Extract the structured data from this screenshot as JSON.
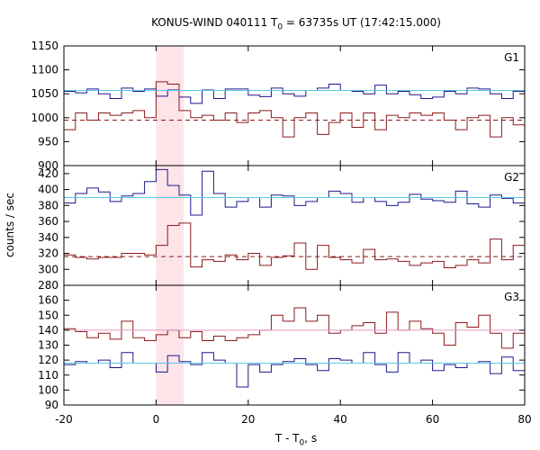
{
  "title_main": "KONUS-WIND 040111 T",
  "title_sub": "0",
  "title_rest": " = 63735s UT (17:42:15.000)",
  "xlabel_main": "T - T",
  "xlabel_sub": "0",
  "xlabel_rest": ", s",
  "ylabel": "counts / sec",
  "colors": {
    "blue": "#1a1a8c",
    "red": "#8b1a1a",
    "cyan": "#5bc8e8",
    "pink": "#e89ac8",
    "shade": "#fde4e8"
  },
  "chart_data": [
    {
      "type": "line",
      "panel": "G1",
      "xlim": [
        -20,
        80
      ],
      "ylim": [
        900,
        1150
      ],
      "yticks": [
        900,
        950,
        1000,
        1050,
        1100,
        1150
      ],
      "xticks": [
        -20,
        0,
        20,
        40,
        60,
        80
      ],
      "highlight_interval": [
        0,
        6
      ],
      "series": [
        {
          "color": "blue",
          "step": 2.5,
          "x0": -20,
          "values": [
            1055,
            1052,
            1060,
            1050,
            1040,
            1062,
            1055,
            1060,
            1045,
            1058,
            1043,
            1030,
            1058,
            1040,
            1060,
            1060,
            1047,
            1044,
            1062,
            1050,
            1045,
            1057,
            1062,
            1070,
            1057,
            1055,
            1050,
            1068,
            1050,
            1055,
            1048,
            1040,
            1043,
            1055,
            1050,
            1062,
            1060,
            1050,
            1040,
            1055
          ]
        },
        {
          "color": "red",
          "step": 2.5,
          "x0": -20,
          "values": [
            975,
            1010,
            995,
            1010,
            1005,
            1010,
            1015,
            1000,
            1075,
            1070,
            1015,
            1000,
            1005,
            995,
            1010,
            990,
            1010,
            1015,
            1000,
            960,
            1000,
            1010,
            965,
            990,
            1010,
            980,
            1010,
            975,
            1005,
            1000,
            1010,
            1005,
            1010,
            995,
            975,
            1000,
            1005,
            960,
            1000,
            985
          ]
        },
        {
          "color": "cyan",
          "style": "solid",
          "level": 1057
        },
        {
          "color": "red",
          "style": "dashed",
          "level": 995
        }
      ],
      "label": "G1"
    },
    {
      "type": "line",
      "panel": "G2",
      "xlim": [
        -20,
        80
      ],
      "ylim": [
        280,
        430
      ],
      "yticks": [
        280,
        300,
        320,
        340,
        360,
        380,
        400,
        420
      ],
      "xticks": [
        -20,
        0,
        20,
        40,
        60,
        80
      ],
      "highlight_interval": [
        0,
        6
      ],
      "series": [
        {
          "color": "blue",
          "step": 2.5,
          "x0": -20,
          "values": [
            383,
            395,
            402,
            397,
            385,
            392,
            395,
            410,
            425,
            405,
            393,
            368,
            423,
            395,
            378,
            385,
            390,
            378,
            393,
            392,
            380,
            385,
            390,
            398,
            395,
            384,
            390,
            385,
            380,
            384,
            394,
            388,
            386,
            384,
            398,
            382,
            378,
            393,
            389,
            383
          ]
        },
        {
          "color": "red",
          "step": 2.5,
          "x0": -20,
          "values": [
            318,
            315,
            313,
            315,
            315,
            320,
            320,
            318,
            330,
            355,
            358,
            303,
            312,
            310,
            318,
            312,
            320,
            305,
            315,
            317,
            333,
            300,
            330,
            315,
            312,
            308,
            325,
            312,
            313,
            310,
            305,
            308,
            310,
            302,
            305,
            312,
            308,
            338,
            312,
            330
          ]
        },
        {
          "color": "cyan",
          "style": "solid",
          "level": 390
        },
        {
          "color": "red",
          "style": "dashed",
          "level": 316
        }
      ],
      "label": "G2"
    },
    {
      "type": "line",
      "panel": "G3",
      "xlim": [
        -20,
        80
      ],
      "ylim": [
        90,
        170
      ],
      "yticks": [
        90,
        100,
        110,
        120,
        130,
        140,
        150,
        160
      ],
      "xticks": [
        -20,
        0,
        20,
        40,
        60,
        80
      ],
      "highlight_interval": [
        0,
        6
      ],
      "series": [
        {
          "color": "blue",
          "step": 2.5,
          "x0": -20,
          "values": [
            117,
            119,
            118,
            120,
            115,
            125,
            118,
            118,
            112,
            123,
            119,
            117,
            125,
            120,
            118,
            102,
            117,
            112,
            117,
            119,
            121,
            117,
            113,
            121,
            120,
            118,
            125,
            117,
            112,
            125,
            118,
            120,
            113,
            117,
            115,
            118,
            119,
            111,
            122,
            113
          ]
        },
        {
          "color": "red",
          "step": 2.5,
          "x0": -20,
          "values": [
            141,
            139,
            135,
            138,
            134,
            146,
            135,
            133,
            137,
            140,
            135,
            139,
            133,
            136,
            133,
            135,
            137,
            140,
            150,
            146,
            155,
            146,
            150,
            138,
            140,
            143,
            145,
            138,
            152,
            140,
            146,
            141,
            138,
            130,
            145,
            142,
            150,
            138,
            128,
            138
          ]
        },
        {
          "color": "pink",
          "style": "solid",
          "level": 140
        },
        {
          "color": "cyan",
          "style": "solid",
          "level": 118
        }
      ],
      "label": "G3"
    }
  ]
}
